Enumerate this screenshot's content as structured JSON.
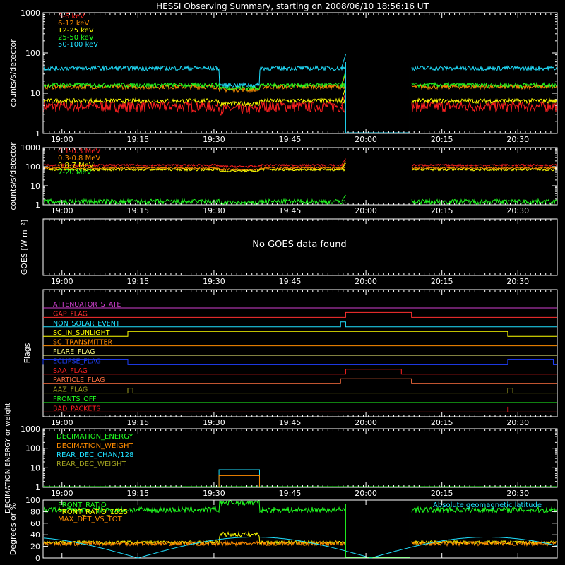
{
  "title": "HESSI Observing Summary, starting on 2008/06/10 18:56:16 UT",
  "time_ticks": [
    "19:00",
    "19:15",
    "19:30",
    "19:45",
    "20:00",
    "20:15",
    "20:30"
  ],
  "chart_data": [
    {
      "type": "line",
      "panel": "low-energy",
      "ylabel": "counts/s/detector",
      "yscale": "log",
      "ylim": [
        1,
        1000
      ],
      "y_ticks": [
        "1",
        "10",
        "100",
        "1000"
      ],
      "x_ticks": [
        "19:00",
        "19:15",
        "19:30",
        "19:45",
        "20:00",
        "20:15",
        "20:30"
      ],
      "gap": [
        "19:56",
        "20:09"
      ],
      "series": [
        {
          "name": "3-6 keV",
          "color": "#ff2020",
          "level": 4.8
        },
        {
          "name": "6-12 keV",
          "color": "#ff8c00",
          "level": 14.5
        },
        {
          "name": "12-25 keV",
          "color": "#ffff00",
          "level": 6.5
        },
        {
          "name": "25-50 keV",
          "color": "#20ff20",
          "level": 16
        },
        {
          "name": "50-100 keV",
          "color": "#20e0ff",
          "level": 42
        }
      ]
    },
    {
      "type": "line",
      "panel": "high-energy",
      "ylabel": "counts/s/detector",
      "yscale": "log",
      "ylim": [
        1,
        1000
      ],
      "y_ticks": [
        "1",
        "10",
        "100",
        "1000"
      ],
      "x_ticks": [
        "19:00",
        "19:15",
        "19:30",
        "19:45",
        "20:00",
        "20:15",
        "20:30"
      ],
      "series": [
        {
          "name": "0.1-0.3 MeV",
          "color": "#ff2020",
          "level": 120
        },
        {
          "name": "0.3-0.8 MeV",
          "color": "#ff8c00",
          "level": 85
        },
        {
          "name": "0.8-7 MeV",
          "color": "#ffff00",
          "level": 70
        },
        {
          "name": "7-20 MeV",
          "color": "#20ff20",
          "level": 1.5
        }
      ]
    },
    {
      "type": "line",
      "panel": "goes",
      "ylabel": "GOES [W m⁻²]",
      "message": "No GOES data found",
      "x_ticks": [
        "19:00",
        "19:15",
        "19:30",
        "19:45",
        "20:00",
        "20:15",
        "20:30"
      ]
    },
    {
      "type": "line",
      "panel": "flags",
      "ylabel": "Flags",
      "x_ticks": [
        "19:00",
        "19:15",
        "19:30",
        "19:45",
        "20:00",
        "20:15",
        "20:30"
      ],
      "flags": [
        {
          "name": "ATTENUATOR_STATE",
          "color": "#d040d0",
          "high": []
        },
        {
          "name": "GAP_FLAG",
          "color": "#ff3030",
          "high": [
            [
              "19:56",
              "20:09"
            ]
          ]
        },
        {
          "name": "NON_SOLAR_EVENT",
          "color": "#20e0ff",
          "high": [
            [
              "19:55",
              "19:56"
            ]
          ]
        },
        {
          "name": "SC_IN_SUNLIGHT",
          "color": "#ffff00",
          "high": [
            [
              "19:13",
              "20:28"
            ]
          ]
        },
        {
          "name": "SC_TRANSMITTER",
          "color": "#ff8c00",
          "high": []
        },
        {
          "name": "FLARE_FLAG",
          "color": "#ffff80",
          "high": []
        },
        {
          "name": "ECLIPSE_FLAG",
          "color": "#2040ff",
          "high": [
            [
              "18:56",
              "19:13"
            ],
            [
              "20:28",
              "20:37"
            ]
          ]
        },
        {
          "name": "SAA_FLAG",
          "color": "#ff2020",
          "high": [
            [
              "19:56",
              "20:07"
            ]
          ]
        },
        {
          "name": "PARTICLE_FLAG",
          "color": "#ff7040",
          "high": [
            [
              "19:55",
              "20:09"
            ]
          ]
        },
        {
          "name": "AAZ_FLAG",
          "color": "#a0a020",
          "high": [
            [
              "19:13",
              "19:14"
            ],
            [
              "20:28",
              "20:29"
            ]
          ]
        },
        {
          "name": "FRONTS_OFF",
          "color": "#20ff20",
          "high": []
        },
        {
          "name": "BAD_PACKETS",
          "color": "#ff2020",
          "high": [
            [
              "20:28",
              "20:28"
            ]
          ]
        }
      ]
    },
    {
      "type": "line",
      "panel": "decimation",
      "ylabel": "DECIMATION ENERGY or weight",
      "yscale": "log",
      "ylim": [
        1,
        1000
      ],
      "y_ticks": [
        "1",
        "10",
        "100",
        "1000"
      ],
      "x_ticks": [
        "19:00",
        "19:15",
        "19:30",
        "19:45",
        "20:00",
        "20:15",
        "20:30"
      ],
      "series": [
        {
          "name": "DECIMATION_ENERGY",
          "color": "#20ff20"
        },
        {
          "name": "DECIMATION_WEIGHT",
          "color": "#ff8c00"
        },
        {
          "name": "REAR_DEC_CHAN/128",
          "color": "#20e0ff"
        },
        {
          "name": "REAR_DEC_WEIGHT",
          "color": "#a0a020"
        }
      ],
      "steps": [
        {
          "series": "REAR_DEC_CHAN/128",
          "from": "19:31",
          "to": "19:39",
          "value": 8
        },
        {
          "series": "DECIMATION_WEIGHT",
          "from": "19:31",
          "to": "19:39",
          "value": 4
        }
      ]
    },
    {
      "type": "line",
      "panel": "ratios",
      "ylabel": "Degrees or %",
      "ylim": [
        0,
        100
      ],
      "y_ticks": [
        "0",
        "20",
        "40",
        "60",
        "80",
        "100"
      ],
      "x_ticks": [
        "19:00",
        "19:15",
        "19:30",
        "19:45",
        "20:00",
        "20:15",
        "20:30"
      ],
      "series": [
        {
          "name": "FRONT_RATIO",
          "color": "#20ff20",
          "level": 83
        },
        {
          "name": "FRONT_RATIO_1525",
          "color": "#ffff00",
          "level": 27
        },
        {
          "name": "MAX_DET_VS_TOT",
          "color": "#ff8c00",
          "level": 25
        },
        {
          "name": "Absolute geomagnetic latitude",
          "color": "#20e0ff"
        }
      ]
    }
  ]
}
